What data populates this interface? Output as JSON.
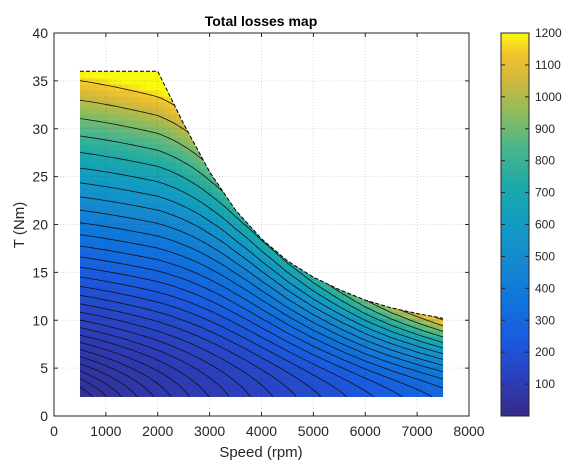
{
  "chart_data": {
    "type": "contour",
    "title": "Total losses map",
    "xlabel": "Speed (rpm)",
    "ylabel": "T (Nm)",
    "xlim": [
      0,
      8000
    ],
    "ylim": [
      0,
      40
    ],
    "xticks": [
      0,
      1000,
      2000,
      3000,
      4000,
      5000,
      6000,
      7000,
      8000
    ],
    "xtick_labels": [
      "0",
      "1000",
      "2000",
      "3000",
      "4000",
      "5000",
      "6000",
      "7000",
      "8000"
    ],
    "yticks": [
      0,
      5,
      10,
      15,
      20,
      25,
      30,
      35,
      40
    ],
    "ytick_labels": [
      "0",
      "5",
      "10",
      "15",
      "20",
      "25",
      "30",
      "35",
      "40"
    ],
    "grid": true,
    "colormap": "parula",
    "colorbar": {
      "range": [
        0,
        1200
      ],
      "ticks": [
        100,
        200,
        300,
        400,
        500,
        600,
        700,
        800,
        900,
        1000,
        1100,
        1200
      ],
      "tick_labels": [
        "100",
        "200",
        "300",
        "400",
        "500",
        "600",
        "700",
        "800",
        "900",
        "1000",
        "1100",
        "1200"
      ],
      "position": "right"
    },
    "operating_envelope": {
      "speed_rpm": [
        500,
        2000,
        2500,
        3000,
        3500,
        4000,
        4500,
        5000,
        5500,
        6000,
        6500,
        7000,
        7500
      ],
      "max_torque_Nm": [
        36,
        36,
        30.5,
        25.5,
        21.5,
        18.5,
        16.2,
        14.5,
        13.2,
        12.1,
        11.3,
        10.7,
        10.2
      ],
      "min_torque_Nm": 2,
      "speed_max_rpm": 7500
    },
    "contour_levels_count": 30
  }
}
